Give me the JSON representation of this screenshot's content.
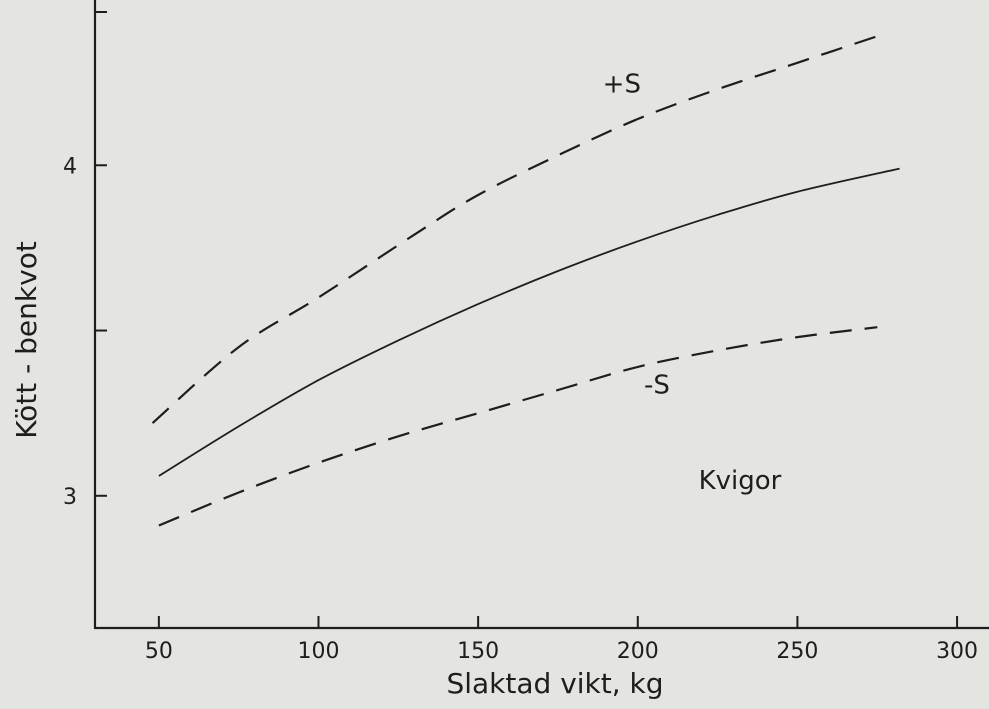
{
  "chart_data": {
    "type": "line",
    "title": "",
    "xlabel": "Slaktad vikt, kg",
    "ylabel": "Kött - benkvot",
    "xlim": [
      30,
      310
    ],
    "ylim": [
      2.6,
      4.5
    ],
    "x_ticks": [
      50,
      100,
      150,
      200,
      250,
      300
    ],
    "y_ticks": [
      3,
      3.5,
      4
    ],
    "y_tick_labels": [
      "3",
      "",
      "4"
    ],
    "grid": false,
    "legend": "none",
    "series": [
      {
        "name": "+S",
        "style": "dashed",
        "x": [
          48,
          75,
          100,
          130,
          150,
          175,
          200,
          225,
          250,
          278
        ],
        "y": [
          3.22,
          3.45,
          3.6,
          3.79,
          3.91,
          4.03,
          4.14,
          4.23,
          4.31,
          4.4
        ]
      },
      {
        "name": "",
        "style": "solid",
        "x": [
          50,
          75,
          100,
          125,
          150,
          175,
          200,
          225,
          250,
          282
        ],
        "y": [
          3.06,
          3.21,
          3.35,
          3.47,
          3.58,
          3.68,
          3.77,
          3.85,
          3.92,
          3.99
        ]
      },
      {
        "name": "-S",
        "style": "dashed",
        "x": [
          50,
          75,
          100,
          125,
          150,
          175,
          200,
          225,
          250,
          275
        ],
        "y": [
          2.91,
          3.01,
          3.1,
          3.18,
          3.25,
          3.32,
          3.39,
          3.44,
          3.48,
          3.51
        ]
      }
    ],
    "annotations": [
      {
        "text": "+S",
        "x": 195,
        "y": 4.22
      },
      {
        "text": "-S",
        "x": 206,
        "y": 3.31
      },
      {
        "text": "Kvigor",
        "x": 232,
        "y": 3.02
      }
    ]
  }
}
